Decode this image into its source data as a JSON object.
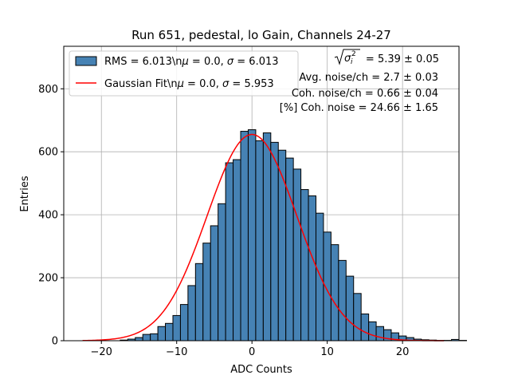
{
  "chart_data": {
    "type": "bar",
    "title": "Run 651, pedestal, lo Gain, Channels 24-27",
    "xlabel": "ADC Counts",
    "ylabel": "Entries",
    "xlim": [
      -25,
      27.5
    ],
    "ylim": [
      0,
      935
    ],
    "grid": true,
    "legend_position": "upper-left",
    "x_ticks": [
      -20,
      -10,
      0,
      10,
      20
    ],
    "y_ticks": [
      0,
      200,
      400,
      600,
      800
    ],
    "histogram": {
      "bin_start": -22.5,
      "bin_width": 1,
      "counts": [
        0,
        0,
        0,
        0,
        0,
        2,
        5,
        10,
        20,
        22,
        45,
        55,
        80,
        115,
        175,
        245,
        310,
        365,
        435,
        565,
        575,
        665,
        670,
        635,
        660,
        630,
        605,
        580,
        545,
        480,
        460,
        405,
        345,
        305,
        255,
        205,
        150,
        85,
        60,
        45,
        35,
        25,
        15,
        10,
        5,
        3,
        2,
        1,
        1,
        4,
        1,
        0
      ]
    },
    "series": [
      {
        "name": "RMS = 6.013\\n$\\mu$ = 0.0, $\\sigma$ = 6.013",
        "type": "histogram",
        "color": "#4682b4"
      },
      {
        "name": "Gaussian Fit\\n$\\mu$ = 0.0, $\\sigma$ = 5.953",
        "type": "line",
        "color": "#ff0000",
        "mu": 0.0,
        "sigma": 5.953,
        "amplitude": 655,
        "x_range": [
          -22.5,
          25.5
        ]
      }
    ],
    "legend": [
      {
        "pre": "RMS = 6.013\\n",
        "mid": " = 0.0, ",
        "post": " = 6.013"
      },
      {
        "pre": "Gaussian Fit\\n",
        "mid": " = 0.0, ",
        "post": " = 5.953"
      }
    ],
    "greek": {
      "mu": "μ",
      "sigma": "σ"
    },
    "annotations": [
      " = 5.39 ± 0.05",
      "Avg. noise/ch = 2.7 ± 0.03",
      "Coh. noise/ch = 0.66 ± 0.04",
      "[%] Coh. noise = 24.66 ± 1.65"
    ]
  }
}
